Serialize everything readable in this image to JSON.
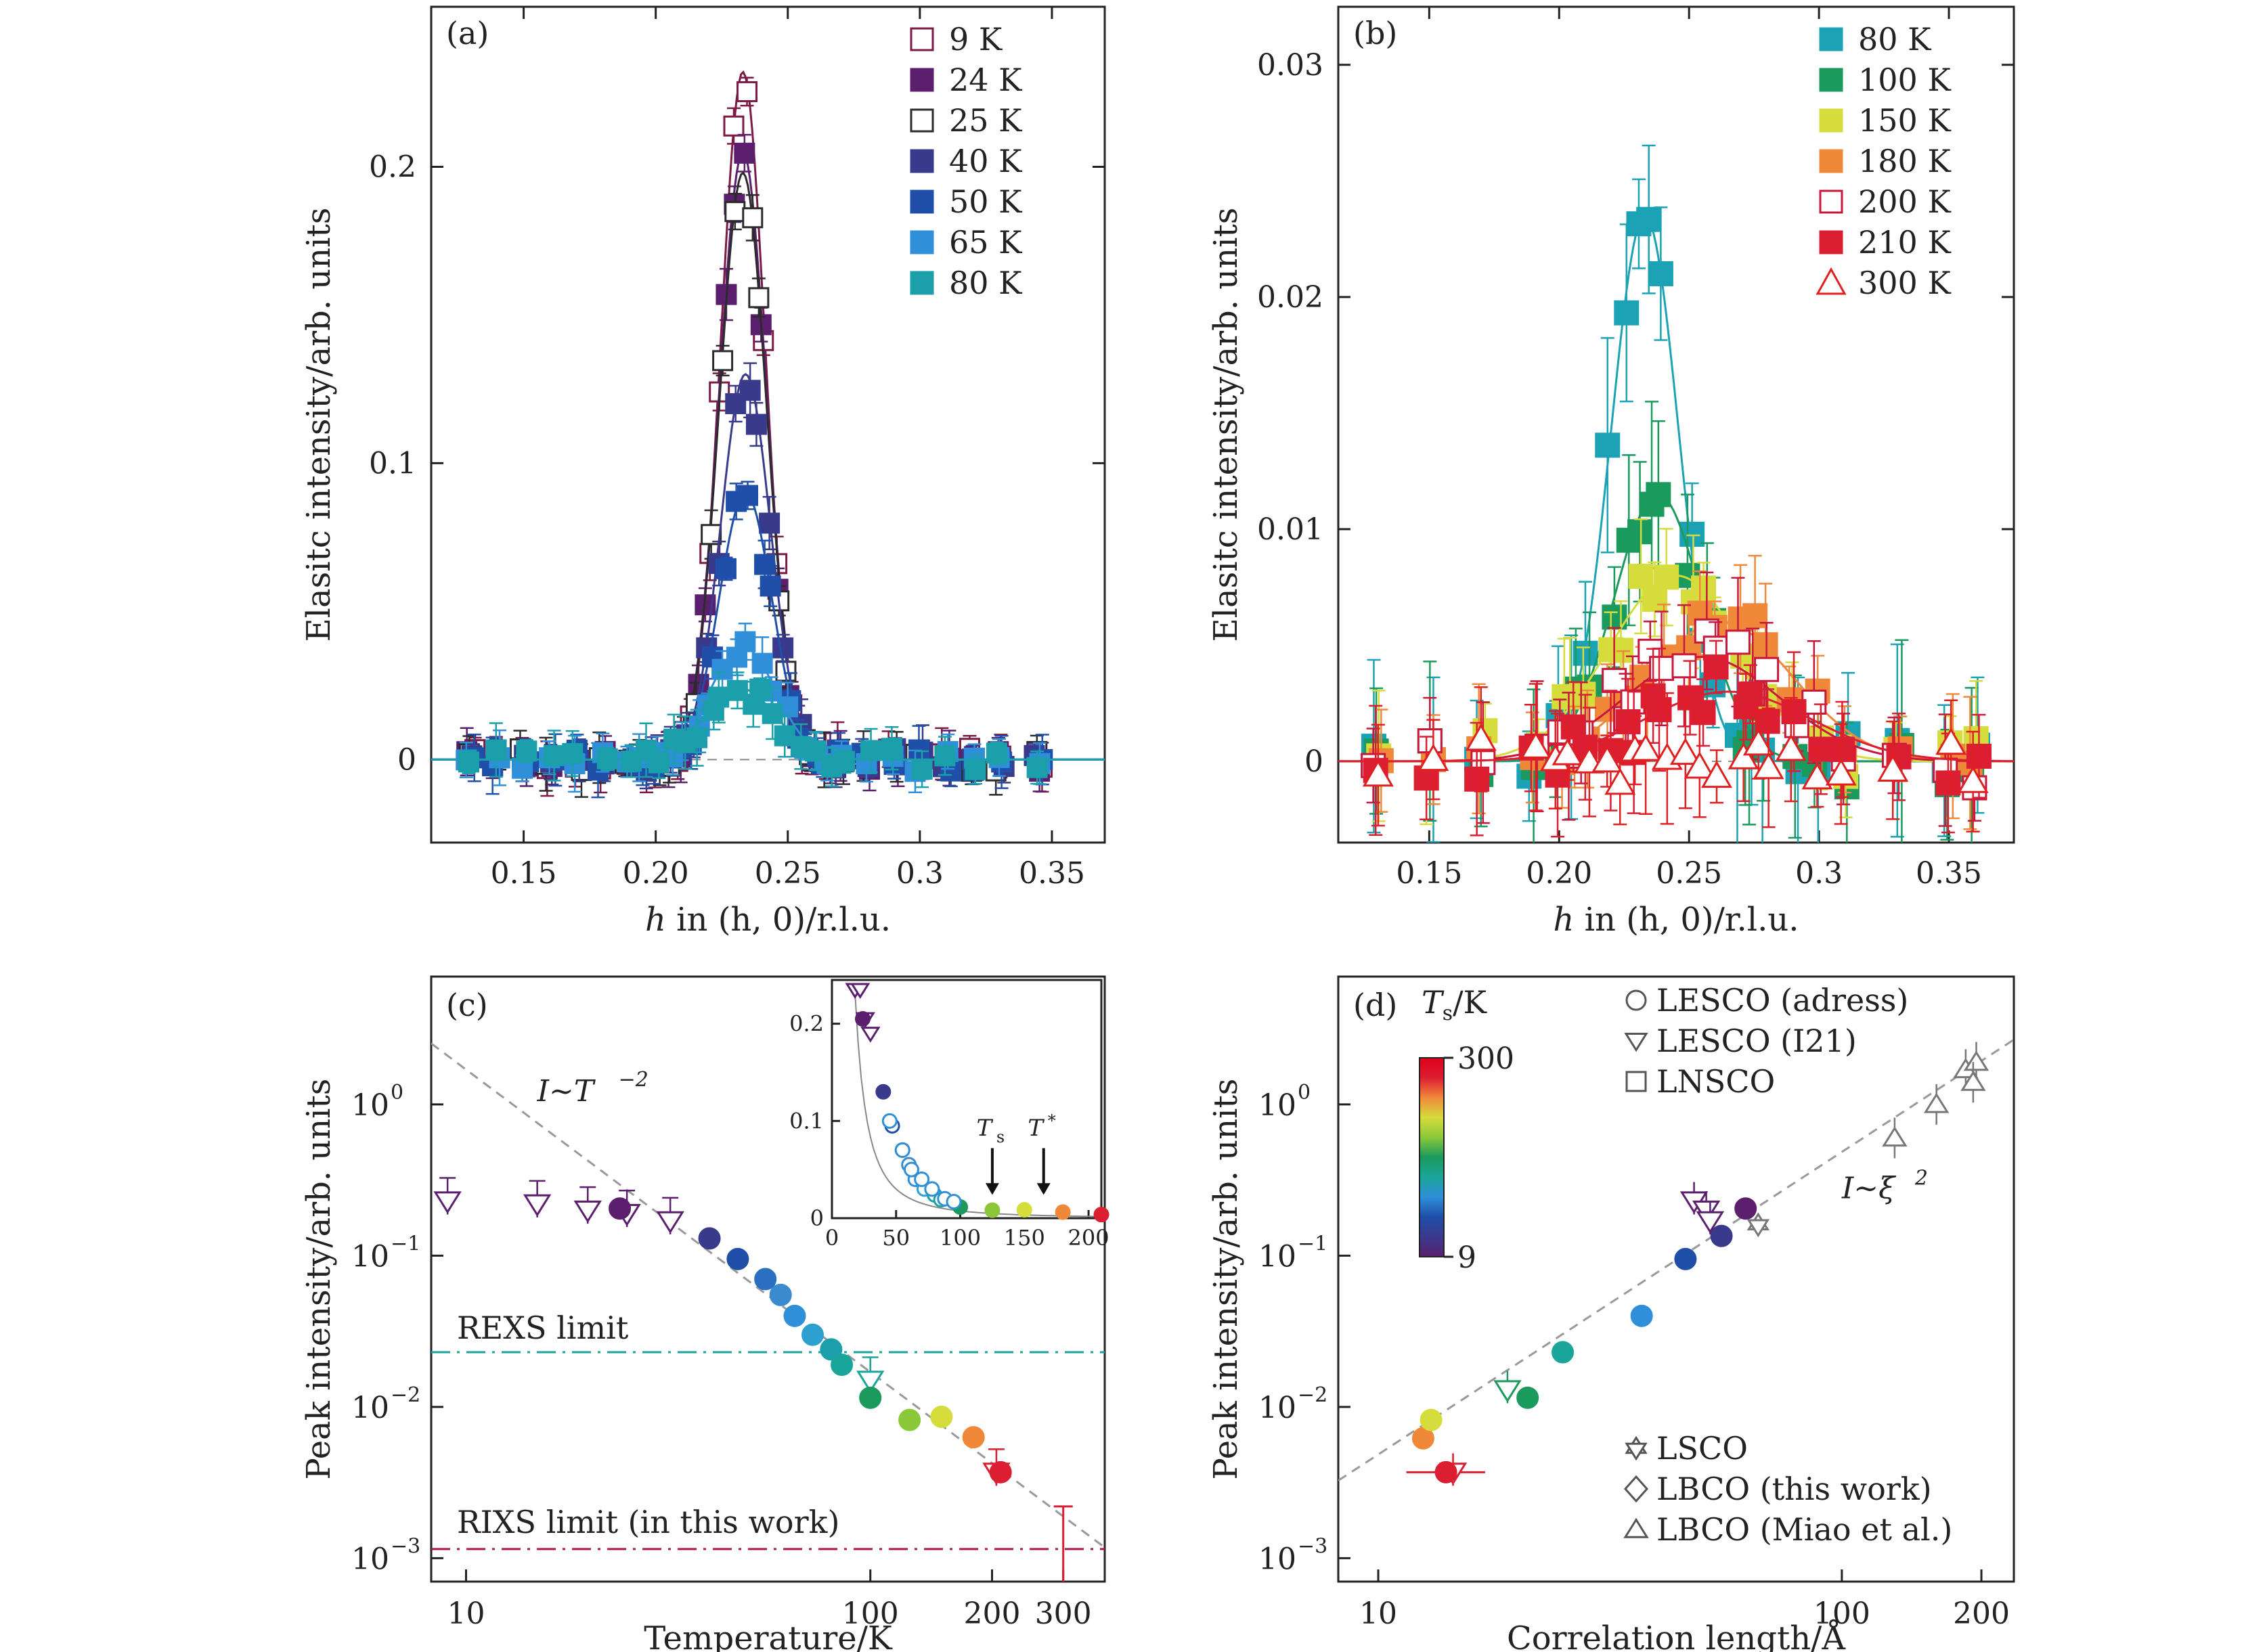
{
  "chart_data": [
    {
      "type": "scatter",
      "panel_label": "(a)",
      "xlabel_italic": "h",
      "xlabel": " in (h, 0)/r.l.u.",
      "ylabel": "Elasitc intensity/arb. units",
      "xlim": [
        0.115,
        0.37
      ],
      "ylim": [
        -0.028,
        0.254
      ],
      "xticks": [
        "0.15",
        "0.20",
        "0.25",
        "0.3",
        "0.35"
      ],
      "xtick_values": [
        0.15,
        0.2,
        0.25,
        0.3,
        0.35
      ],
      "yticks": [
        "0",
        "0.1",
        "0.2"
      ],
      "ytick_values": [
        0,
        0.1,
        0.2
      ],
      "legend_position": "top-right",
      "fit": "gaussian",
      "series": [
        {
          "name": "9 K",
          "color": "#7b1a45",
          "filled": false,
          "center": 0.233,
          "amp": 0.232,
          "sigma": 0.008
        },
        {
          "name": "24 K",
          "color": "#5b1f6d",
          "filled": true,
          "center": 0.233,
          "amp": 0.205,
          "sigma": 0.0085
        },
        {
          "name": "25 K",
          "color": "#2b2b2b",
          "filled": false,
          "center": 0.233,
          "amp": 0.198,
          "sigma": 0.0085
        },
        {
          "name": "40 K",
          "color": "#3a3a8c",
          "filled": true,
          "center": 0.234,
          "amp": 0.13,
          "sigma": 0.009
        },
        {
          "name": "50 K",
          "color": "#1f4fa8",
          "filled": true,
          "center": 0.234,
          "amp": 0.09,
          "sigma": 0.0095
        },
        {
          "name": "65 K",
          "color": "#2f8fd8",
          "filled": true,
          "center": 0.233,
          "amp": 0.038,
          "sigma": 0.012
        },
        {
          "name": "80 K",
          "color": "#1a9fab",
          "filled": true,
          "center": 0.232,
          "amp": 0.024,
          "sigma": 0.013
        }
      ]
    },
    {
      "type": "scatter",
      "panel_label": "(b)",
      "xlabel_italic": "h",
      "xlabel": " in (h, 0)/r.l.u.",
      "ylabel": "Elasitc intensity/arb. units",
      "xlim": [
        0.115,
        0.375
      ],
      "ylim": [
        -0.0035,
        0.0325
      ],
      "xticks": [
        "0.15",
        "0.20",
        "0.25",
        "0.3",
        "0.35"
      ],
      "xtick_values": [
        0.15,
        0.2,
        0.25,
        0.3,
        0.35
      ],
      "yticks": [
        "0",
        "0.01",
        "0.02",
        "0.03"
      ],
      "ytick_values": [
        0,
        0.01,
        0.02,
        0.03
      ],
      "legend_position": "top-right",
      "fit": "gaussian",
      "series": [
        {
          "name": "80 K",
          "color": "#1ba3b5",
          "filled": true,
          "marker": "square",
          "center": 0.233,
          "amp": 0.0235,
          "sigma": 0.013
        },
        {
          "name": "100 K",
          "color": "#1a9a5c",
          "filled": true,
          "marker": "square",
          "center": 0.238,
          "amp": 0.0115,
          "sigma": 0.017
        },
        {
          "name": "150 K",
          "color": "#d6dc3c",
          "filled": true,
          "marker": "square",
          "center": 0.245,
          "amp": 0.008,
          "sigma": 0.026
        },
        {
          "name": "180 K",
          "color": "#f0883a",
          "filled": true,
          "marker": "square",
          "center": 0.262,
          "amp": 0.006,
          "sigma": 0.028
        },
        {
          "name": "200 K",
          "color": "#c8173c",
          "filled": false,
          "marker": "square",
          "center": 0.255,
          "amp": 0.0045,
          "sigma": 0.03
        },
        {
          "name": "210 K",
          "color": "#dc1e32",
          "filled": true,
          "marker": "square",
          "center": 0.265,
          "amp": 0.003,
          "sigma": 0.032
        },
        {
          "name": "300 K",
          "color": "#e02020",
          "filled": false,
          "marker": "triangle",
          "center": 0.26,
          "amp": 0.0,
          "sigma": 0.03
        }
      ]
    },
    {
      "type": "scatter",
      "panel_label": "(c)",
      "xlabel": "Temperature/K",
      "ylabel": "Peak intensity/arb. units",
      "xscale": "log",
      "yscale": "log",
      "xlim": [
        8.2,
        380
      ],
      "ylim": [
        0.0007,
        7
      ],
      "xticks": [
        "10",
        "100",
        "200",
        "300"
      ],
      "xtick_values": [
        10,
        100,
        200,
        300
      ],
      "yticks": [
        "10",
        "10",
        "10",
        "10"
      ],
      "ytick_exponents": [
        "0",
        "−1",
        "−2",
        "−3"
      ],
      "ytick_values": [
        1,
        0.1,
        0.01,
        0.001
      ],
      "annotations": {
        "power_law": "I~T",
        "power_law_exp": "−2",
        "rexs_limit": "REXS limit",
        "rixs_limit": "RIXS limit (in this work)",
        "rexs_limit_value": 0.023,
        "rixs_limit_value": 0.00115
      },
      "power_law_line": {
        "prefactor": 170,
        "exponent": -2
      },
      "triangles_open": [
        [
          9,
          0.23
        ],
        [
          15,
          0.22
        ],
        [
          20,
          0.2
        ],
        [
          25,
          0.19
        ],
        [
          32,
          0.17
        ],
        [
          100,
          0.015
        ],
        [
          205,
          0.0037
        ]
      ],
      "circles": [
        {
          "t": 24,
          "v": 0.205,
          "color": "#5b1f6d"
        },
        {
          "t": 40,
          "v": 0.13,
          "color": "#3a3a8c"
        },
        {
          "t": 47,
          "v": 0.095,
          "color": "#1f4fa8"
        },
        {
          "t": 55,
          "v": 0.07,
          "color": "#2a6fc0"
        },
        {
          "t": 60,
          "v": 0.055,
          "color": "#3a8ad0"
        },
        {
          "t": 65,
          "v": 0.04,
          "color": "#2f8fd8"
        },
        {
          "t": 72,
          "v": 0.03,
          "color": "#2ea0d0"
        },
        {
          "t": 80,
          "v": 0.024,
          "color": "#1a9fab"
        },
        {
          "t": 85,
          "v": 0.019,
          "color": "#1aa59a"
        },
        {
          "t": 100,
          "v": 0.0115,
          "color": "#1a9a5c"
        },
        {
          "t": 125,
          "v": 0.0082,
          "color": "#8ac83a"
        },
        {
          "t": 150,
          "v": 0.0086,
          "color": "#d6dc3c"
        },
        {
          "t": 180,
          "v": 0.0063,
          "color": "#f0883a"
        },
        {
          "t": 210,
          "v": 0.0037,
          "color": "#dc1e32"
        }
      ],
      "inset": {
        "xlim": [
          0,
          210
        ],
        "ylim": [
          0,
          0.245
        ],
        "xticks": [
          "0",
          "50",
          "100",
          "150",
          "200"
        ],
        "xtick_values": [
          0,
          50,
          100,
          150,
          200
        ],
        "yticks": [
          "0",
          "0.1",
          "0.2"
        ],
        "ytick_values": [
          0,
          0.1,
          0.2
        ],
        "ts_label": "T",
        "ts_sub": "s",
        "tstar_label": "T",
        "tstar_sup": "*",
        "ts_value": 125,
        "tstar_value": 165
      }
    },
    {
      "type": "scatter",
      "panel_label": "(d)",
      "xlabel": "Correlation length/Å",
      "ylabel": "Peak intensity/arb. units",
      "xscale": "log",
      "yscale": "log",
      "xlim": [
        8.2,
        235
      ],
      "ylim": [
        0.0007,
        7
      ],
      "xticks": [
        "10",
        "100",
        "200"
      ],
      "xtick_values": [
        10,
        100,
        200
      ],
      "yticks": [
        "10",
        "10",
        "10",
        "10"
      ],
      "ytick_exponents": [
        "0",
        "−1",
        "−2",
        "−3"
      ],
      "ytick_values": [
        1,
        0.1,
        0.01,
        0.001
      ],
      "colorbar": {
        "label": "T",
        "label_sub": "s",
        "label_unit": "/K",
        "max": "300",
        "min": "9"
      },
      "power_law": "I~ξ",
      "power_law_exp": "2",
      "legend_top": [
        "LESCO (adress)",
        "LESCO (I21)",
        "LNSCO"
      ],
      "legend_bottom": [
        "LSCO",
        "LBCO (this work)",
        "LBCO (Miao et al.)"
      ],
      "points": [
        {
          "x": 12.5,
          "y": 0.0062,
          "color": "#f0883a"
        },
        {
          "x": 13.0,
          "y": 0.0082,
          "color": "#d6dc3c"
        },
        {
          "x": 14.0,
          "y": 0.0037,
          "color": "#dc1e32"
        },
        {
          "x": 21.0,
          "y": 0.0115,
          "color": "#1a9a5c"
        },
        {
          "x": 25.0,
          "y": 0.023,
          "color": "#1aa59a"
        },
        {
          "x": 37.0,
          "y": 0.04,
          "color": "#2f8fd8"
        },
        {
          "x": 46.0,
          "y": 0.095,
          "color": "#1f4fa8"
        },
        {
          "x": 55.0,
          "y": 0.135,
          "color": "#3a3a8c"
        },
        {
          "x": 62.0,
          "y": 0.205,
          "color": "#5b1f6d"
        }
      ],
      "triangles_open_down": [
        [
          14.5,
          0.0037
        ],
        [
          19.0,
          0.013
        ],
        [
          48,
          0.23
        ],
        [
          51,
          0.2
        ],
        [
          52,
          0.17
        ]
      ],
      "triangles_up": [
        [
          130,
          0.6
        ],
        [
          160,
          1.0
        ],
        [
          185,
          1.7
        ],
        [
          195,
          1.9
        ],
        [
          192,
          1.4
        ]
      ],
      "stars": [
        [
          66,
          0.16
        ]
      ]
    }
  ]
}
